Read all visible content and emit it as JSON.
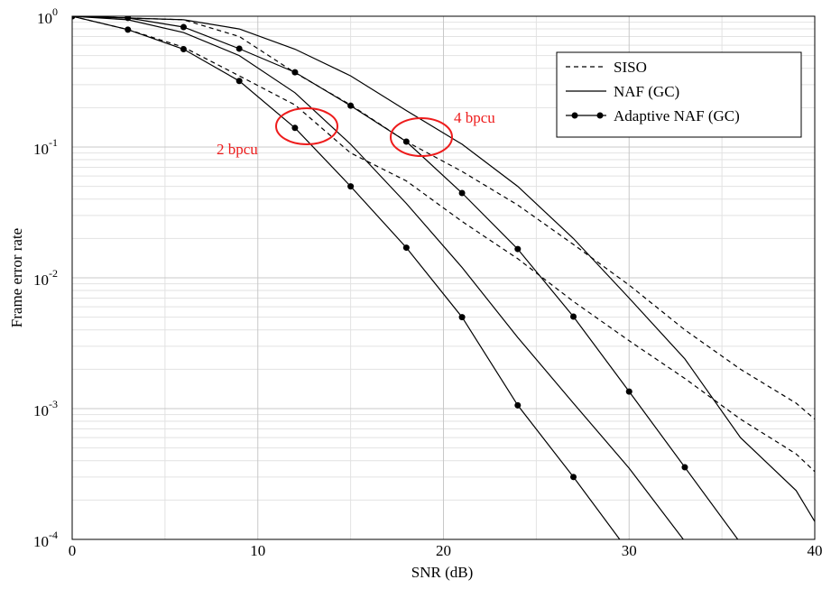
{
  "chart_data": {
    "type": "line",
    "xlabel": "SNR (dB)",
    "ylabel": "Frame error rate",
    "xlim": [
      0,
      40
    ],
    "xticks": [
      0,
      10,
      20,
      30,
      40
    ],
    "ylim": [
      0.0001,
      1
    ],
    "yscale": "log",
    "yticks": [
      {
        "value": 1,
        "label": "10",
        "exp": "0"
      },
      {
        "value": 0.1,
        "label": "10",
        "exp": "-1"
      },
      {
        "value": 0.01,
        "label": "10",
        "exp": "-2"
      },
      {
        "value": 0.001,
        "label": "10",
        "exp": "-3"
      },
      {
        "value": 0.0001,
        "label": "10",
        "exp": "-4"
      }
    ],
    "grid": true,
    "legend": "upper right",
    "series": [
      {
        "name": "SISO",
        "color": "#000000",
        "dash": "5,4",
        "markers": false,
        "curves": [
          {
            "x": [
              0,
              3,
              6,
              9,
              12,
              15,
              18,
              21,
              24,
              27,
              30,
              33,
              36,
              39,
              40
            ],
            "values": [
              1,
              0.79,
              0.58,
              0.35,
              0.21,
              0.09,
              0.055,
              0.027,
              0.014,
              0.0066,
              0.0033,
              0.0017,
              0.00083,
              0.00045,
              0.00033
            ]
          },
          {
            "x": [
              0,
              6,
              9,
              12,
              15,
              18,
              21,
              24,
              27,
              30,
              33,
              36,
              39,
              40
            ],
            "values": [
              1,
              0.94,
              0.7,
              0.37,
              0.21,
              0.11,
              0.065,
              0.036,
              0.018,
              0.0088,
              0.004,
              0.002,
              0.0011,
              0.00083
            ]
          }
        ]
      },
      {
        "name": "NAF (GC)",
        "color": "#000000",
        "dash": "none",
        "markers": false,
        "curves": [
          {
            "x": [
              0,
              3,
              6,
              9,
              12,
              15,
              18,
              21,
              24,
              27,
              30,
              33
            ],
            "values": [
              1,
              0.94,
              0.75,
              0.5,
              0.26,
              0.105,
              0.037,
              0.012,
              0.0035,
              0.0011,
              0.00035,
              9.65e-05
            ]
          },
          {
            "x": [
              0,
              6,
              9,
              12,
              15,
              18,
              21,
              24,
              27,
              30,
              33,
              36,
              39,
              40
            ],
            "values": [
              1,
              0.94,
              0.8,
              0.56,
              0.35,
              0.19,
              0.105,
              0.05,
              0.02,
              0.007,
              0.0024,
              0.0006,
              0.000236,
              0.000137
            ]
          }
        ]
      },
      {
        "name": "Adaptive NAF (GC)",
        "color": "#000000",
        "dash": "none",
        "markers": true,
        "curves": [
          {
            "x": [
              0,
              3,
              6,
              9,
              12,
              15,
              18,
              21,
              24,
              27,
              30
            ],
            "values": [
              1,
              0.79,
              0.56,
              0.32,
              0.14,
              0.05,
              0.017,
              0.005,
              0.00106,
              0.0003,
              8e-05
            ]
          },
          {
            "x": [
              0,
              3,
              6,
              9,
              12,
              15,
              18,
              21,
              24,
              27,
              30,
              33,
              36
            ],
            "values": [
              1,
              0.97,
              0.826,
              0.565,
              0.373,
              0.207,
              0.11,
              0.0445,
              0.0166,
              0.00505,
              0.00135,
              0.000356,
              9.37e-05
            ]
          }
        ]
      }
    ],
    "annotations": [
      "2 bpcu",
      "4 bpcu"
    ],
    "annotation_color": "#ee1c1c"
  }
}
